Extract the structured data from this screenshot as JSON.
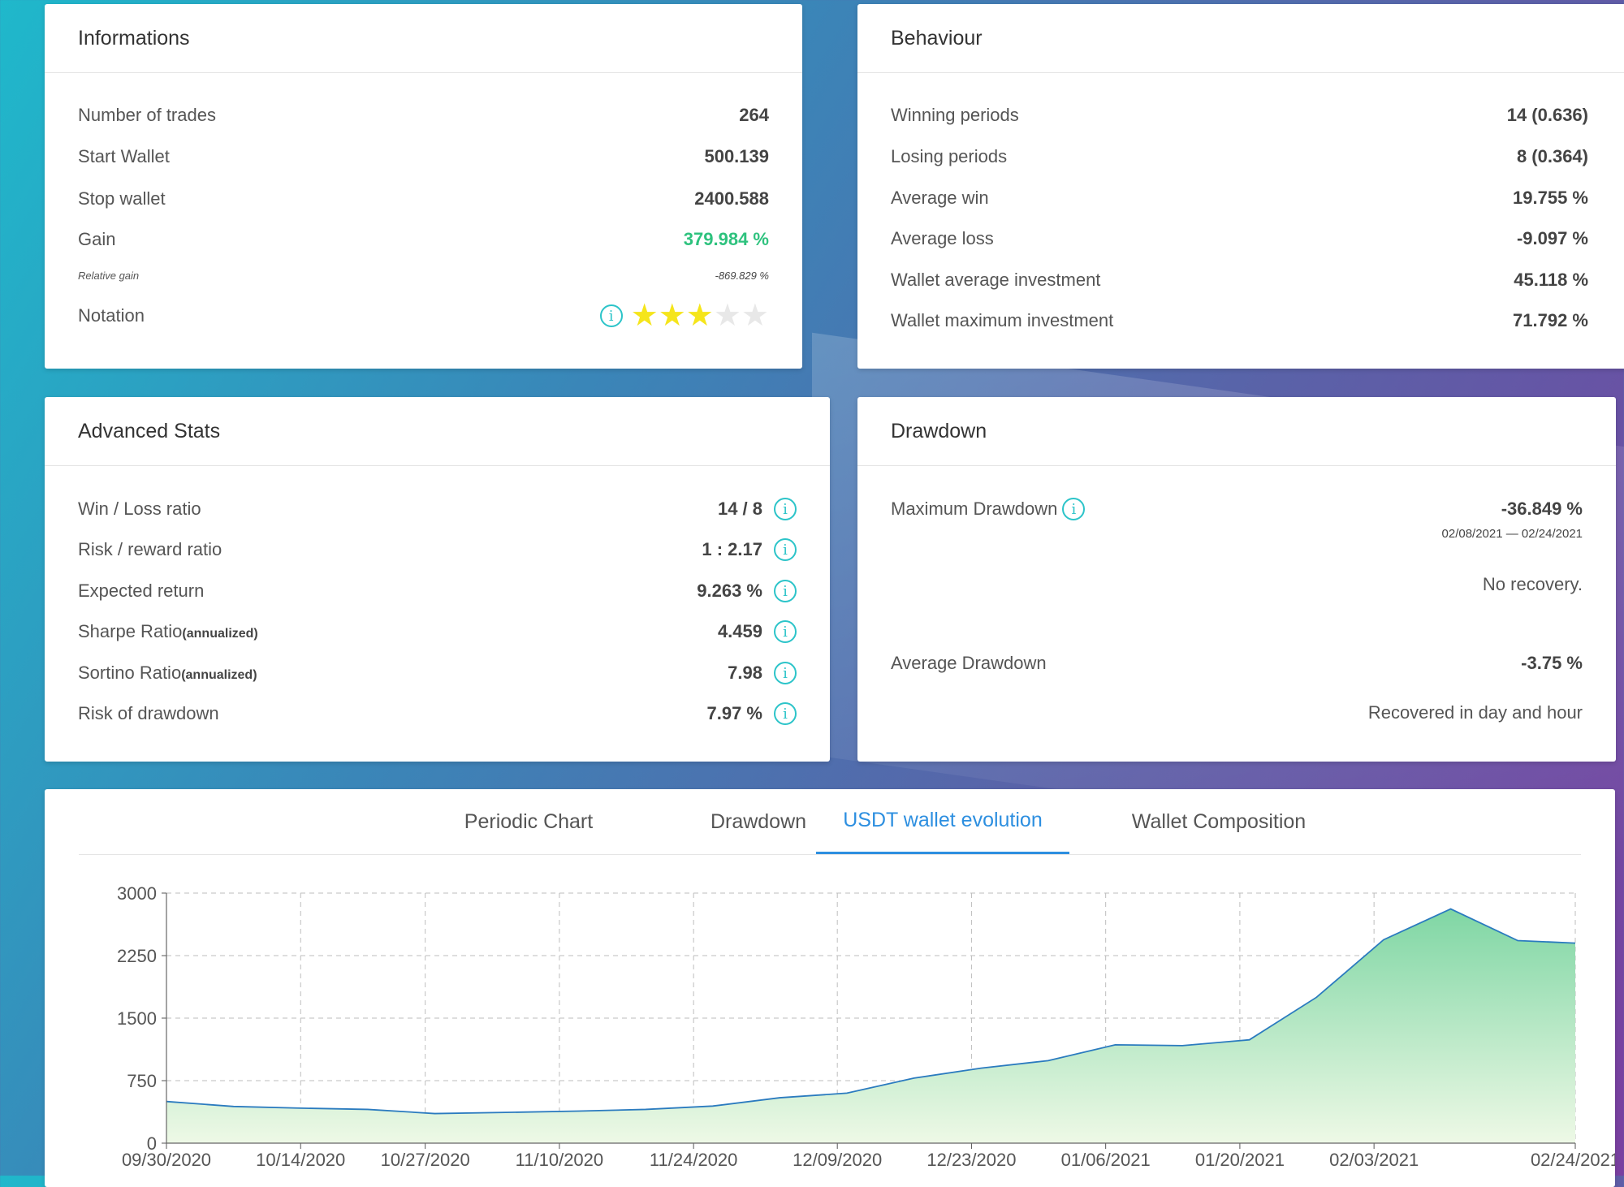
{
  "informations": {
    "title": "Informations",
    "rows": [
      {
        "label": "Number of trades",
        "value": "264"
      },
      {
        "label": "Start Wallet",
        "value": "500.139"
      },
      {
        "label": "Stop wallet",
        "value": "2400.588"
      },
      {
        "label": "Gain",
        "value": "379.984 %"
      },
      {
        "label": "Relative gain",
        "value": "-869.829 %"
      },
      {
        "label": "Notation",
        "stars": 3,
        "stars_max": 5
      }
    ],
    "colors": {
      "gain": "#2ec27e",
      "star_on": "#f5e51b",
      "star_off": "#e8e8e8"
    }
  },
  "behaviour": {
    "title": "Behaviour",
    "rows": [
      {
        "label": "Winning periods",
        "value": "14 (0.636)"
      },
      {
        "label": "Losing periods",
        "value": "8 (0.364)"
      },
      {
        "label": "Average win",
        "value": "19.755 %"
      },
      {
        "label": "Average loss",
        "value": "-9.097 %"
      },
      {
        "label": "Wallet average investment",
        "value": "45.118 %"
      },
      {
        "label": "Wallet maximum investment",
        "value": "71.792 %"
      }
    ]
  },
  "advanced": {
    "title": "Advanced Stats",
    "rows": [
      {
        "label": "Win / Loss ratio",
        "suffix": "",
        "value": "14 / 8"
      },
      {
        "label": "Risk / reward ratio",
        "suffix": "",
        "value": "1 : 2.17"
      },
      {
        "label": "Expected return",
        "suffix": "",
        "value": "9.263 %"
      },
      {
        "label": "Sharpe Ratio",
        "suffix": "(annualized)",
        "value": "4.459"
      },
      {
        "label": "Sortino Ratio",
        "suffix": "(annualized)",
        "value": "7.98"
      },
      {
        "label": "Risk of drawdown",
        "suffix": "",
        "value": "7.97 %"
      }
    ],
    "info_icon": "i"
  },
  "drawdown": {
    "title": "Drawdown",
    "max_label": "Maximum Drawdown",
    "max_value": "-36.849 %",
    "max_dates": "02/08/2021 — 02/24/2021",
    "max_recovery": "No recovery.",
    "avg_label": "Average Drawdown",
    "avg_value": "-3.75 %",
    "avg_recovery": "Recovered in day and hour",
    "info_icon": "i"
  },
  "tabs": {
    "items": [
      "Periodic Chart",
      "Drawdown",
      "USDT wallet evolution",
      "Wallet Composition"
    ],
    "active_index": 2,
    "active_color": "#2d8fe0"
  },
  "chart_data": {
    "type": "area",
    "x_ticks": [
      "09/30/2020",
      "10/14/2020",
      "10/27/2020",
      "11/10/2020",
      "11/24/2020",
      "12/09/2020",
      "12/23/2020",
      "01/06/2021",
      "01/20/2021",
      "02/03/2021",
      "02/24/2021"
    ],
    "y_ticks": [
      "3000",
      "2250",
      "1500",
      "750",
      "0"
    ],
    "ylim": [
      0,
      3000
    ],
    "series": [
      {
        "points": [
          [
            "09/30/2020",
            500
          ],
          [
            "10/07/2020",
            440
          ],
          [
            "10/14/2020",
            420
          ],
          [
            "10/21/2020",
            405
          ],
          [
            "10/28/2020",
            355
          ],
          [
            "11/05/2020",
            370
          ],
          [
            "11/12/2020",
            385
          ],
          [
            "11/19/2020",
            405
          ],
          [
            "11/26/2020",
            445
          ],
          [
            "12/03/2020",
            545
          ],
          [
            "12/10/2020",
            600
          ],
          [
            "12/17/2020",
            780
          ],
          [
            "12/24/2020",
            900
          ],
          [
            "12/31/2020",
            990
          ],
          [
            "01/07/2021",
            1180
          ],
          [
            "01/14/2021",
            1170
          ],
          [
            "01/21/2021",
            1240
          ],
          [
            "01/28/2021",
            1750
          ],
          [
            "02/04/2021",
            2440
          ],
          [
            "02/11/2021",
            2810
          ],
          [
            "02/18/2021",
            2430
          ],
          [
            "02/24/2021",
            2400
          ]
        ],
        "line_color": "#2b7bbf",
        "fill_top": "#7fd6a4",
        "fill_bottom": "#eef9e6"
      }
    ],
    "grid": true
  }
}
